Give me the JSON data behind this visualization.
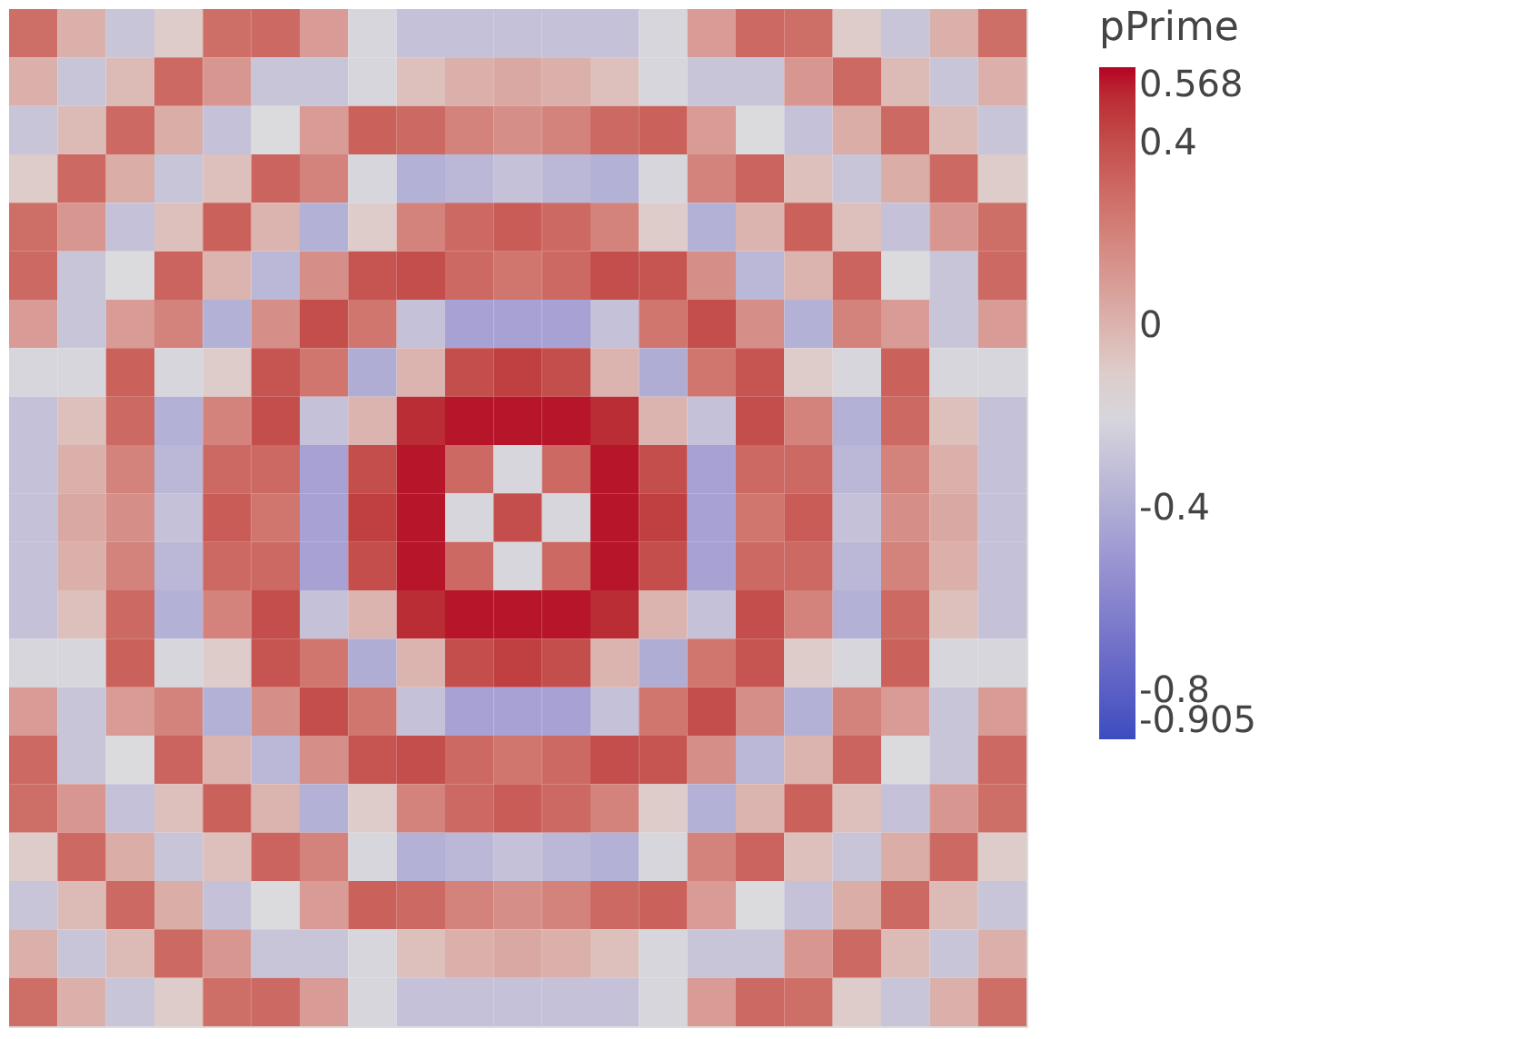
{
  "chart_data": {
    "type": "heatmap",
    "clabel": "pPrime",
    "categories": [
      null,
      null,
      null,
      null,
      null,
      null,
      null,
      null,
      null,
      null,
      null,
      null,
      null,
      null,
      null,
      null,
      null,
      null,
      null,
      null,
      null
    ],
    "y_categories": [
      null,
      null,
      null,
      null,
      null,
      null,
      null,
      null,
      null,
      null,
      null,
      null,
      null,
      null,
      null,
      null,
      null,
      null,
      null,
      null,
      null
    ],
    "clim": [
      -0.905,
      0.568
    ],
    "cticks": [
      0.568,
      0.4,
      0,
      -0.4,
      -0.8,
      -0.905
    ],
    "colors": [
      "#3b4cc0",
      "#dddddd",
      "#b40426"
    ],
    "cells": [
      [
        0.28,
        0.02,
        -0.28,
        -0.1,
        0.28,
        0.3,
        0.1,
        -0.2,
        -0.3,
        -0.3,
        -0.3,
        -0.3,
        -0.3,
        -0.2,
        0.1,
        0.3,
        0.28,
        -0.1,
        -0.28,
        0.02,
        0.28
      ],
      [
        0.02,
        -0.28,
        -0.03,
        0.3,
        0.12,
        -0.28,
        -0.28,
        -0.2,
        -0.05,
        0.02,
        0.05,
        0.02,
        -0.05,
        -0.2,
        -0.28,
        -0.28,
        0.12,
        0.3,
        -0.03,
        -0.28,
        0.02
      ],
      [
        -0.28,
        -0.03,
        0.3,
        0.03,
        -0.3,
        -0.18,
        0.1,
        0.33,
        0.3,
        0.2,
        0.15,
        0.2,
        0.3,
        0.33,
        0.1,
        -0.18,
        -0.3,
        0.03,
        0.3,
        -0.03,
        -0.28
      ],
      [
        -0.1,
        0.3,
        0.03,
        -0.28,
        -0.05,
        0.32,
        0.2,
        -0.2,
        -0.38,
        -0.35,
        -0.3,
        -0.35,
        -0.38,
        -0.2,
        0.2,
        0.32,
        -0.05,
        -0.28,
        0.03,
        0.3,
        -0.1
      ],
      [
        0.28,
        0.12,
        -0.3,
        -0.05,
        0.33,
        0.0,
        -0.38,
        -0.1,
        0.2,
        0.3,
        0.35,
        0.3,
        0.2,
        -0.1,
        -0.38,
        0.0,
        0.33,
        -0.05,
        -0.3,
        0.12,
        0.28
      ],
      [
        0.3,
        -0.28,
        -0.18,
        0.32,
        0.0,
        -0.35,
        0.15,
        0.38,
        0.4,
        0.3,
        0.25,
        0.3,
        0.4,
        0.38,
        0.15,
        -0.35,
        0.0,
        0.32,
        -0.18,
        -0.28,
        0.3
      ],
      [
        0.1,
        -0.28,
        0.1,
        0.2,
        -0.38,
        0.15,
        0.4,
        0.25,
        -0.3,
        -0.45,
        -0.45,
        -0.45,
        -0.3,
        0.25,
        0.4,
        0.15,
        -0.38,
        0.2,
        0.1,
        -0.28,
        0.1
      ],
      [
        -0.2,
        -0.2,
        0.33,
        -0.2,
        -0.1,
        0.38,
        0.25,
        -0.4,
        0.0,
        0.4,
        0.45,
        0.4,
        0.0,
        -0.4,
        0.25,
        0.38,
        -0.1,
        -0.2,
        0.33,
        -0.2,
        -0.2
      ],
      [
        -0.3,
        -0.05,
        0.3,
        -0.38,
        0.2,
        0.4,
        -0.3,
        0.0,
        0.5,
        0.55,
        0.55,
        0.55,
        0.5,
        0.0,
        -0.3,
        0.4,
        0.2,
        -0.38,
        0.3,
        -0.05,
        -0.3
      ],
      [
        -0.3,
        0.02,
        0.2,
        -0.35,
        0.3,
        0.3,
        -0.45,
        0.4,
        0.55,
        0.3,
        -0.2,
        0.3,
        0.55,
        0.4,
        -0.45,
        0.3,
        0.3,
        -0.35,
        0.2,
        0.02,
        -0.3
      ],
      [
        -0.3,
        0.05,
        0.15,
        -0.3,
        0.35,
        0.25,
        -0.45,
        0.45,
        0.55,
        -0.2,
        0.4,
        -0.2,
        0.55,
        0.45,
        -0.45,
        0.25,
        0.35,
        -0.3,
        0.15,
        0.05,
        -0.3
      ],
      [
        -0.3,
        0.02,
        0.2,
        -0.35,
        0.3,
        0.3,
        -0.45,
        0.4,
        0.55,
        0.3,
        -0.2,
        0.3,
        0.55,
        0.4,
        -0.45,
        0.3,
        0.3,
        -0.35,
        0.2,
        0.02,
        -0.3
      ],
      [
        -0.3,
        -0.05,
        0.3,
        -0.38,
        0.2,
        0.4,
        -0.3,
        0.0,
        0.5,
        0.55,
        0.55,
        0.55,
        0.5,
        0.0,
        -0.3,
        0.4,
        0.2,
        -0.38,
        0.3,
        -0.05,
        -0.3
      ],
      [
        -0.2,
        -0.2,
        0.33,
        -0.2,
        -0.1,
        0.38,
        0.25,
        -0.4,
        0.0,
        0.4,
        0.45,
        0.4,
        0.0,
        -0.4,
        0.25,
        0.38,
        -0.1,
        -0.2,
        0.33,
        -0.2,
        -0.2
      ],
      [
        0.1,
        -0.28,
        0.1,
        0.2,
        -0.38,
        0.15,
        0.4,
        0.25,
        -0.3,
        -0.45,
        -0.45,
        -0.45,
        -0.3,
        0.25,
        0.4,
        0.15,
        -0.38,
        0.2,
        0.1,
        -0.28,
        0.1
      ],
      [
        0.3,
        -0.28,
        -0.18,
        0.32,
        0.0,
        -0.35,
        0.15,
        0.38,
        0.4,
        0.3,
        0.25,
        0.3,
        0.4,
        0.38,
        0.15,
        -0.35,
        0.0,
        0.32,
        -0.18,
        -0.28,
        0.3
      ],
      [
        0.28,
        0.12,
        -0.3,
        -0.05,
        0.33,
        0.0,
        -0.38,
        -0.1,
        0.2,
        0.3,
        0.35,
        0.3,
        0.2,
        -0.1,
        -0.38,
        0.0,
        0.33,
        -0.05,
        -0.3,
        0.12,
        0.28
      ],
      [
        -0.1,
        0.3,
        0.03,
        -0.28,
        -0.05,
        0.32,
        0.2,
        -0.2,
        -0.38,
        -0.35,
        -0.3,
        -0.35,
        -0.38,
        -0.2,
        0.2,
        0.32,
        -0.05,
        -0.28,
        0.03,
        0.3,
        -0.1
      ],
      [
        -0.28,
        -0.03,
        0.3,
        0.03,
        -0.3,
        -0.18,
        0.1,
        0.33,
        0.3,
        0.2,
        0.15,
        0.2,
        0.3,
        0.33,
        0.1,
        -0.18,
        -0.3,
        0.03,
        0.3,
        -0.03,
        -0.28
      ],
      [
        0.02,
        -0.28,
        -0.03,
        0.3,
        0.12,
        -0.28,
        -0.28,
        -0.2,
        -0.05,
        0.02,
        0.05,
        0.02,
        -0.05,
        -0.2,
        -0.28,
        -0.28,
        0.12,
        0.3,
        -0.03,
        -0.28,
        0.02
      ],
      [
        0.28,
        0.02,
        -0.28,
        -0.1,
        0.28,
        0.3,
        0.1,
        -0.2,
        -0.3,
        -0.3,
        -0.3,
        -0.3,
        -0.3,
        -0.2,
        0.1,
        0.3,
        0.28,
        -0.1,
        -0.28,
        0.02,
        0.28
      ]
    ]
  }
}
